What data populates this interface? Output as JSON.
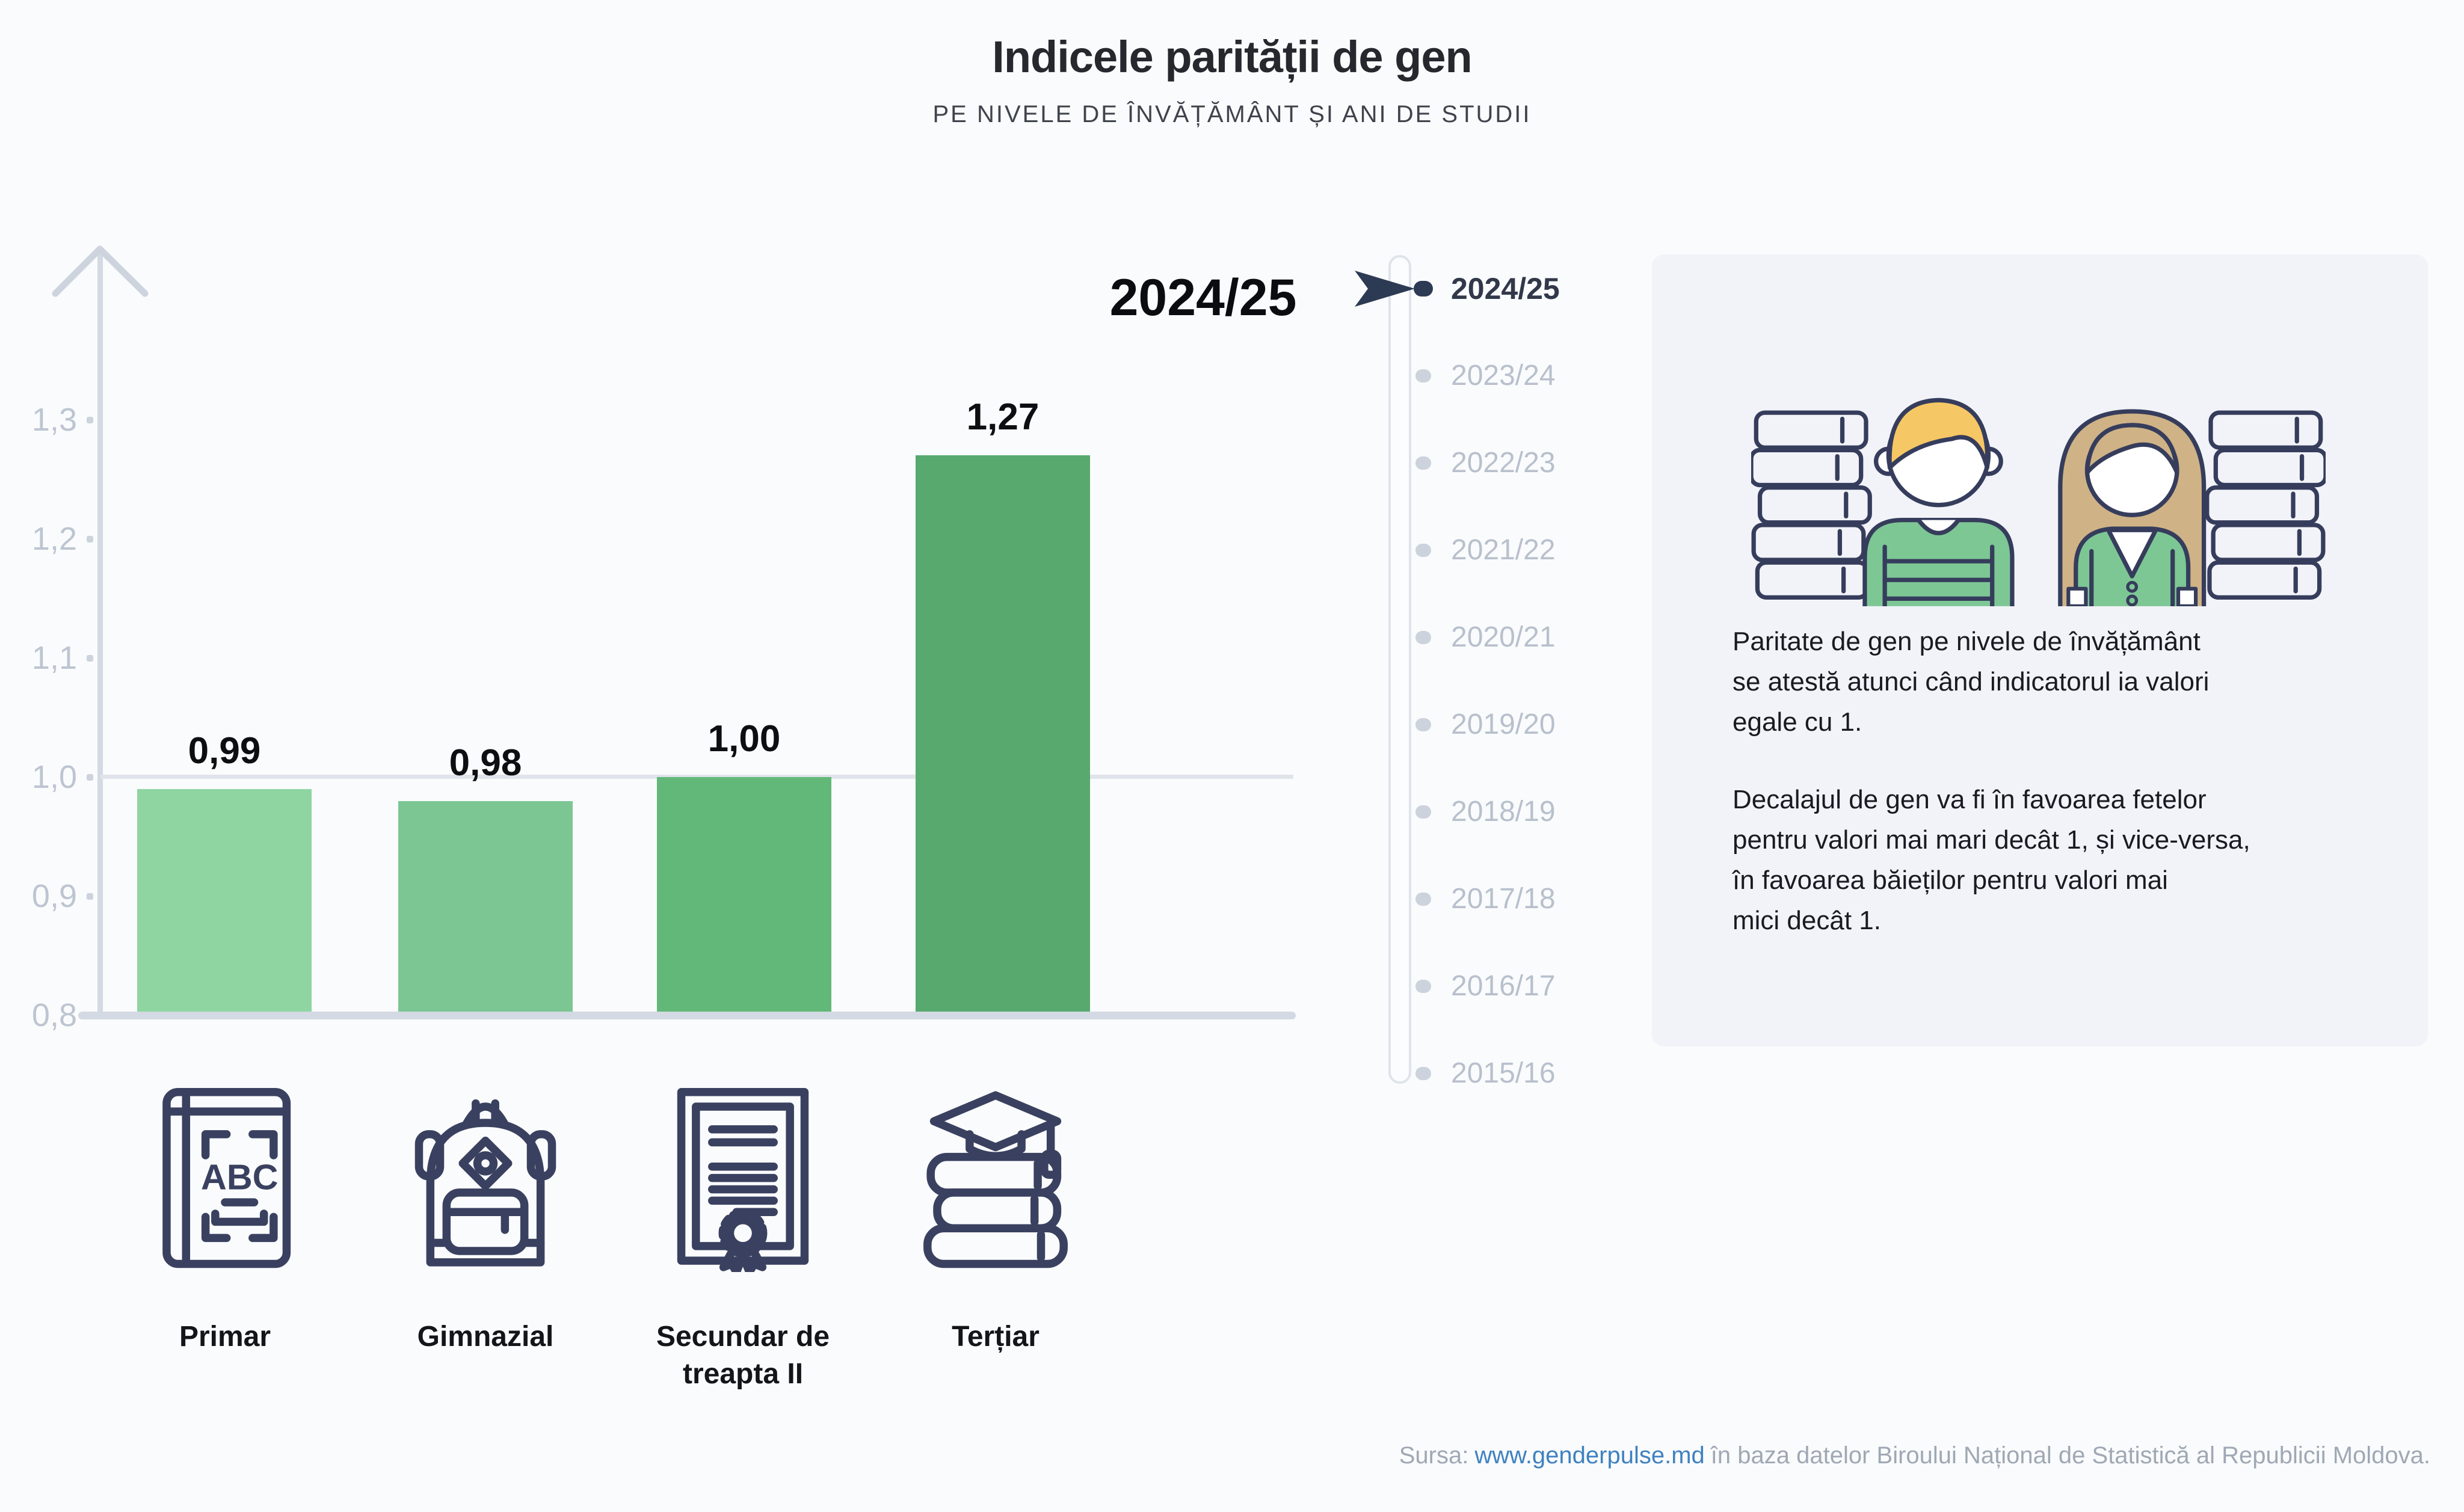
{
  "header": {
    "title": "Indicele parității de gen",
    "subtitle": "PE NIVELE DE ÎNVĂȚĂMÂNT ȘI ANI DE STUDII"
  },
  "chart_data": {
    "type": "bar",
    "title": "Indicele parității de gen",
    "subtitle": "PE NIVELE DE ÎNVĂȚĂMÂNT ȘI ANI DE STUDII",
    "school_year": "2024/25",
    "categories": [
      "Primar",
      "Gimnazial",
      "Secundar de treapta II",
      "Terțiar"
    ],
    "categories_lines": [
      [
        "Primar",
        ""
      ],
      [
        "Gimnazial",
        ""
      ],
      [
        "Secundar de",
        "treapta II"
      ],
      [
        "Terțiar",
        ""
      ]
    ],
    "values": [
      0.99,
      0.98,
      1.0,
      1.27
    ],
    "value_labels": [
      "0,99",
      "0,98",
      "1,00",
      "1,27"
    ],
    "bar_colors": [
      "#8ed5a2",
      "#7cc694",
      "#62b878",
      "#57a96e"
    ],
    "ylim": [
      0.8,
      1.35
    ],
    "ytick_labels": [
      "1,3",
      "1,2",
      "1,1",
      "1,0",
      "0,9",
      "0,8"
    ],
    "gridline_value": 1.0,
    "xlabel": "",
    "ylabel": "",
    "legend_position": "none"
  },
  "timeline": {
    "selected": "2024/25",
    "years": [
      "2024/25",
      "2023/24",
      "2022/23",
      "2021/22",
      "2020/21",
      "2019/20",
      "2018/19",
      "2017/18",
      "2016/17",
      "2015/16"
    ]
  },
  "infobox": {
    "paragraph1": "Paritate de gen pe nivele de învățământ se atestă atunci când indicatorul ia valori egale cu 1.",
    "paragraph2": "Decalajul de gen va fi în favoarea fetelor pentru valori mai mari decât 1, și vice-versa, în favoarea băieților pentru valori mai mici decât 1.",
    "lines1": [
      "Paritate de gen pe nivele de învățământ",
      "se atestă atunci când indicatorul ia valori",
      "egale cu 1."
    ],
    "lines2": [
      "Decalajul de gen va fi în favoarea fetelor",
      "pentru valori mai mari decât 1, și vice-versa,",
      "în favoarea băieților pentru valori mai",
      "mici decât 1."
    ]
  },
  "source": {
    "prefix": "Sursa:",
    "link": "www.genderpulse.md",
    "suffix": "în baza datelor Biroului Național de Statistică al Republicii Moldova."
  },
  "icons": {
    "categories": [
      "abc-book-icon",
      "backpack-icon",
      "diploma-icon",
      "graduation-books-icon"
    ],
    "illustration": "boy-girl-with-books"
  },
  "colors": {
    "outline_navy": "#3a4160",
    "axis_gray": "#d4dae3",
    "tick_label_gray": "#bdc5d1",
    "timeline_inactive": "#b8c0cd",
    "timeline_active": "#2c3a54",
    "infobox_bg": "#f1f3f8",
    "link_blue": "#3f81c1",
    "source_gray": "#9fa8b4",
    "boy_hair": "#f6c765",
    "girl_hair": "#cfb286",
    "shirt_green": "#7dc795"
  }
}
